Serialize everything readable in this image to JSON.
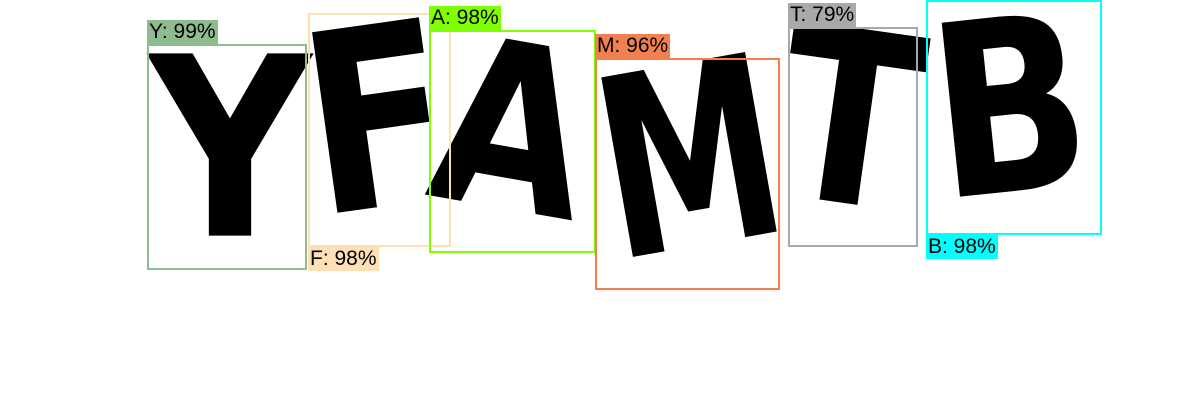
{
  "detections": [
    {
      "label": "Y: 99%",
      "char": "Y",
      "color": "#8fbc8f"
    },
    {
      "label": "F: 98%",
      "char": "F",
      "color": "#ffdfb5"
    },
    {
      "label": "A: 98%",
      "char": "A",
      "color": "#7fff00"
    },
    {
      "label": "M: 96%",
      "char": "M",
      "color": "#f08050"
    },
    {
      "label": "T: 79%",
      "char": "T",
      "color": "#a9a9a9"
    },
    {
      "label": "B: 98%",
      "char": "B",
      "color": "#00ffff"
    }
  ]
}
